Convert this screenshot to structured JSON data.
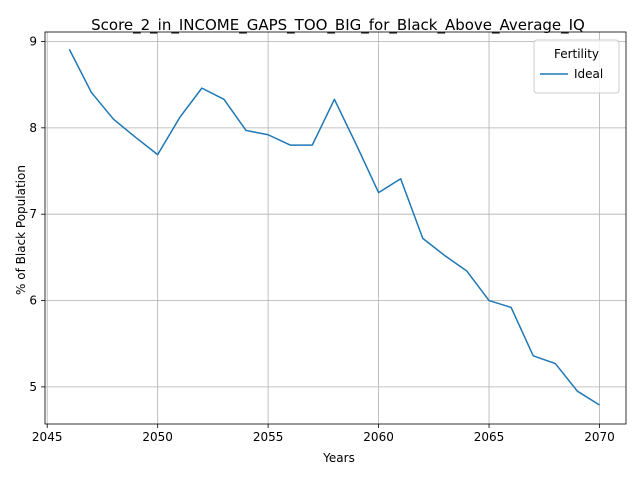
{
  "chart_data": {
    "type": "line",
    "title": "Score_2_in_INCOME_GAPS_TOO_BIG_for_Black_Above_Average_IQ",
    "xlabel": "Years",
    "ylabel": "% of Black Population",
    "xlim": [
      2044.9,
      2071.2
    ],
    "ylim": [
      4.57,
      9.11
    ],
    "xticks": [
      2045,
      2050,
      2055,
      2060,
      2065,
      2070
    ],
    "yticks": [
      5,
      6,
      7,
      8,
      9
    ],
    "grid": true,
    "legend": {
      "title": "Fertility",
      "placement": "top-right"
    },
    "series": [
      {
        "name": "Ideal",
        "color": "#1f77b4",
        "x": [
          2046,
          2047,
          2048,
          2049,
          2050,
          2051,
          2052,
          2053,
          2054,
          2055,
          2056,
          2057,
          2058,
          2059,
          2060,
          2061,
          2062,
          2063,
          2064,
          2065,
          2066,
          2067,
          2068,
          2069,
          2070
        ],
        "y": [
          8.91,
          8.41,
          8.1,
          7.89,
          7.69,
          8.12,
          8.46,
          8.33,
          7.97,
          7.92,
          7.8,
          7.8,
          8.33,
          7.8,
          7.25,
          7.41,
          6.72,
          6.52,
          6.34,
          6.0,
          5.92,
          5.36,
          5.27,
          4.95,
          4.79
        ]
      }
    ]
  }
}
